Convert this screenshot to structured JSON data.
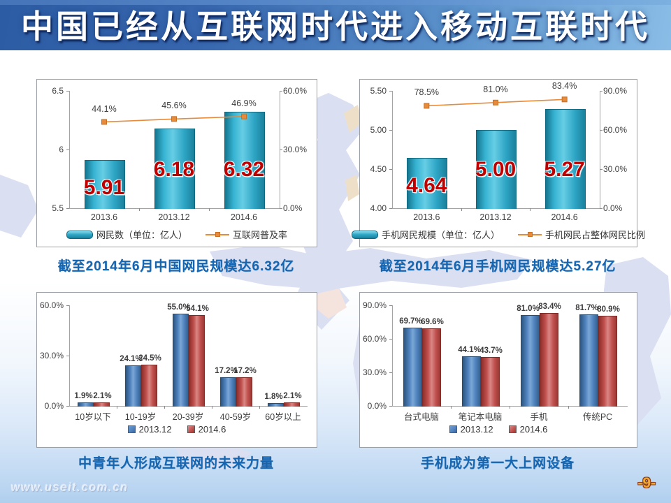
{
  "slide": {
    "title": "中国已经从互联网时代进入移动互联时代",
    "page_number": "-9-",
    "watermark": "www.useit.com.cn",
    "captions": [
      "截至2014年6月中国网民规模达6.32亿",
      "截至2014年6月手机网民规模达5.27亿",
      "中青年人形成互联网的未来力量",
      "手机成为第一大上网设备"
    ],
    "colors": {
      "bar_cyan": "#2fa9c9",
      "bar_blue": "#4f81bd",
      "bar_red": "#c0504d",
      "line_orange": "#e78b3a",
      "data_label_red": "#c00000",
      "caption_blue": "#1565b0",
      "page_number_gold": "#f0a830"
    }
  },
  "chart_data": [
    {
      "id": "internet-users",
      "type": "bar+line",
      "title": "",
      "categories": [
        "2013.6",
        "2013.12",
        "2014.6"
      ],
      "bar_series": {
        "name": "网民数（单位：亿人）",
        "values": [
          5.91,
          6.18,
          6.32
        ],
        "data_labels": [
          "5.91",
          "6.18",
          "6.32"
        ],
        "axis": "left"
      },
      "line_series": {
        "name": "互联网普及率",
        "values": [
          44.1,
          45.6,
          46.9
        ],
        "data_labels": [
          "44.1%",
          "45.6%",
          "46.9%"
        ],
        "axis": "right"
      },
      "left_axis": {
        "min": 5.5,
        "max": 6.5,
        "tick_labels": [
          "6.5",
          "6",
          "5.5"
        ]
      },
      "right_axis": {
        "min": 0,
        "max": 60,
        "tick_labels": [
          "60.0%",
          "30.0%",
          "0.0%"
        ]
      },
      "legend_position": "bottom",
      "grid": false
    },
    {
      "id": "mobile-netizens",
      "type": "bar+line",
      "title": "",
      "categories": [
        "2013.6",
        "2013.12",
        "2014.6"
      ],
      "bar_series": {
        "name": "手机网民规模（单位：亿人）",
        "values": [
          4.64,
          5.0,
          5.27
        ],
        "data_labels": [
          "4.64",
          "5.00",
          "5.27"
        ],
        "axis": "left"
      },
      "line_series": {
        "name": "手机网民占整体网民比例",
        "values": [
          78.5,
          81.0,
          83.4
        ],
        "data_labels": [
          "78.5%",
          "81.0%",
          "83.4%"
        ],
        "axis": "right"
      },
      "left_axis": {
        "min": 4.0,
        "max": 5.5,
        "tick_labels": [
          "5.50",
          "5.00",
          "4.50",
          "4.00"
        ]
      },
      "right_axis": {
        "min": 0,
        "max": 90,
        "tick_labels": [
          "90.0%",
          "60.0%",
          "30.0%",
          "0.0%"
        ]
      },
      "legend_position": "bottom",
      "grid": false
    },
    {
      "id": "age-structure",
      "type": "grouped-bar",
      "title": "",
      "categories": [
        "10岁以下",
        "10-19岁",
        "20-39岁",
        "40-59岁",
        "60岁以上"
      ],
      "series": [
        {
          "name": "2013.12",
          "values": [
            1.9,
            24.1,
            55.0,
            17.2,
            1.8
          ],
          "data_labels": [
            "1.9%",
            "24.1%",
            "55.0%",
            "17.2%",
            "1.8%"
          ]
        },
        {
          "name": "2014.6",
          "values": [
            2.1,
            24.5,
            54.1,
            17.2,
            2.1
          ],
          "data_labels": [
            "2.1%",
            "24.5%",
            "54.1%",
            "17.2%",
            "2.1%"
          ]
        }
      ],
      "y_axis": {
        "min": 0,
        "max": 60,
        "tick_labels": [
          "60.0%",
          "30.0%",
          "0.0%"
        ]
      },
      "legend_position": "bottom",
      "grid": false
    },
    {
      "id": "devices",
      "type": "grouped-bar",
      "title": "",
      "categories": [
        "台式电脑",
        "笔记本电脑",
        "手机",
        "传统PC"
      ],
      "series": [
        {
          "name": "2013.12",
          "values": [
            69.7,
            44.1,
            81.0,
            81.7
          ],
          "data_labels": [
            "69.7%",
            "44.1%",
            "81.0%",
            "81.7%"
          ]
        },
        {
          "name": "2014.6",
          "values": [
            69.6,
            43.7,
            83.4,
            80.9
          ],
          "data_labels": [
            "69.6%",
            "43.7%",
            "83.4%",
            "80.9%"
          ]
        }
      ],
      "y_axis": {
        "min": 0,
        "max": 90,
        "tick_labels": [
          "90.0%",
          "60.0%",
          "30.0%",
          "0.0%"
        ]
      },
      "legend_position": "bottom",
      "grid": false
    }
  ]
}
